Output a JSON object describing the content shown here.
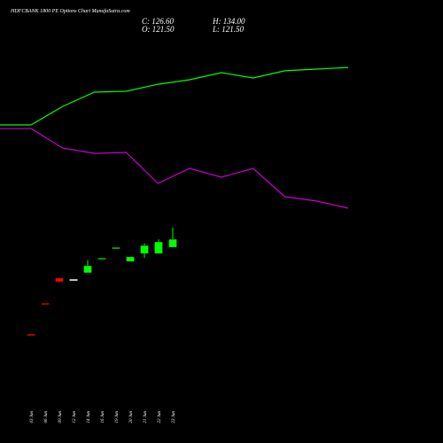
{
  "chart_data": {
    "type": "candlestick",
    "title": "HDFCBANK 1800 PE Options Chart MunafaSutra.com",
    "header": {
      "c": "C: 126.60",
      "o": "O: 121.50",
      "h": "H: 134.00",
      "l": "L: 121.50"
    },
    "categories": [
      "03 Jun",
      "06 Jun",
      "09 Jun",
      "12 Jun",
      "14 Jun",
      "16 Jun",
      "19 Jun",
      "20 Jun",
      "21 Jun",
      "22 Jun",
      "23 Jun"
    ],
    "open": [
      65.8,
      85.5,
      101.7,
      100.5,
      105.1,
      114.0,
      120.8,
      112.4,
      117.5,
      117.5,
      121.5
    ],
    "high": [
      65.8,
      85.5,
      101.7,
      100.5,
      113.0,
      114.2,
      121.0,
      115.3,
      124.0,
      126.6,
      134.0
    ],
    "low": [
      64.8,
      84.8,
      99.4,
      100.5,
      105.1,
      114.0,
      120.8,
      112.4,
      114.7,
      117.5,
      121.5
    ],
    "close": [
      64.8,
      84.8,
      99.4,
      100.5,
      109.6,
      114.2,
      121.0,
      115.3,
      122.6,
      124.9,
      126.6
    ],
    "up_color": "#00ff00",
    "down_color": "#ff0000",
    "flat_color": "#ffffff",
    "lines": [
      {
        "color": "#00ff00",
        "values": [
          199.9,
          211.8,
          220.9,
          221.5,
          226.0,
          228.9,
          233.4,
          230.0,
          234.6,
          235.7,
          236.8
        ]
      },
      {
        "color": "#cc00cc",
        "values": [
          197.6,
          185.1,
          181.7,
          182.3,
          162.4,
          172.1,
          166.4,
          172.1,
          153.9,
          151.1,
          146.5
        ]
      }
    ],
    "ylim": [
      -4,
      280
    ]
  }
}
